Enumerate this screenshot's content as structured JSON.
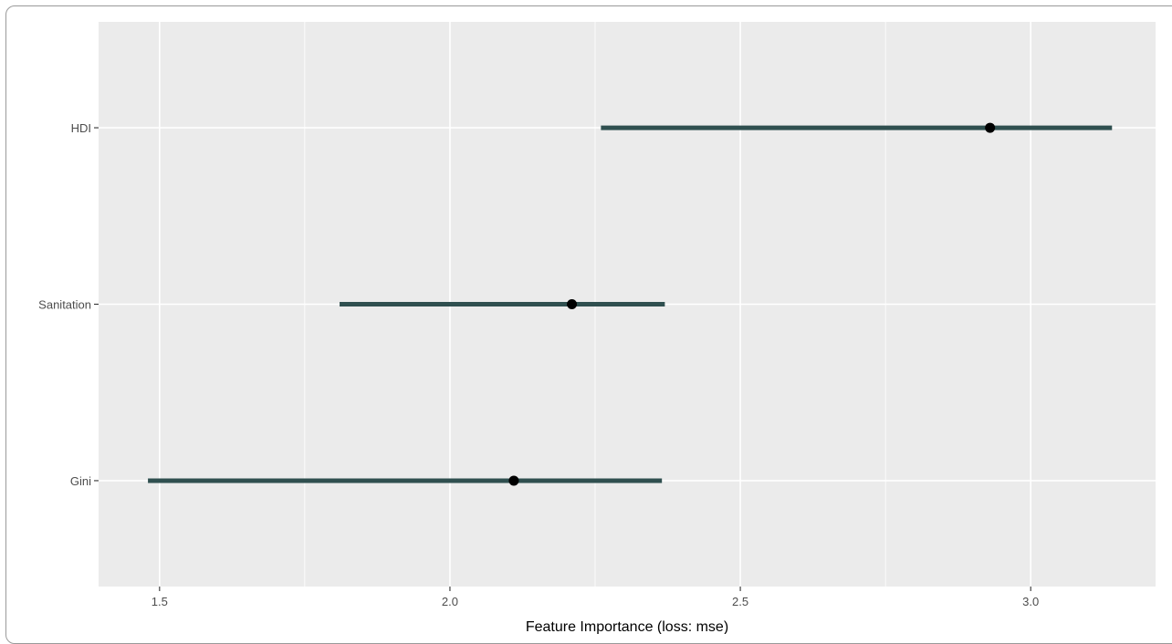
{
  "chart_data": {
    "type": "interval",
    "title": "",
    "xlabel": "Feature Importance (loss: mse)",
    "ylabel": "",
    "xlim": [
      1.395,
      3.215
    ],
    "x_ticks": [
      1.5,
      2.0,
      2.5,
      3.0
    ],
    "x_tick_labels": [
      "1.5",
      "2.0",
      "2.5",
      "3.0"
    ],
    "categories": [
      "HDI",
      "Sanitation",
      "Gini"
    ],
    "points": [
      2.93,
      2.21,
      2.11
    ],
    "intervals": [
      [
        2.26,
        3.14
      ],
      [
        1.81,
        2.37
      ],
      [
        1.48,
        2.365
      ]
    ],
    "grid": true,
    "panel_color": "#ebebeb",
    "bar_color": "#2f4f4f",
    "point_color": "#000000"
  }
}
